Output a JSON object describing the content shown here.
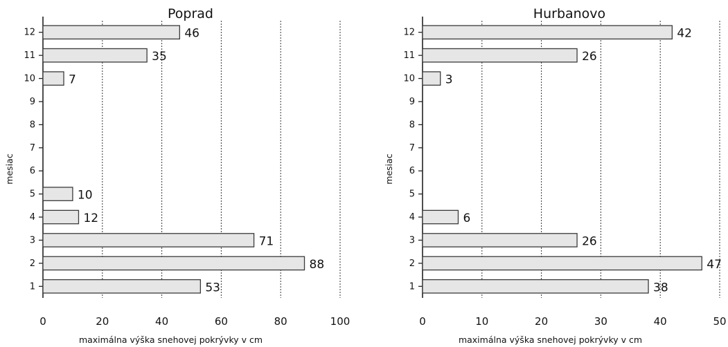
{
  "chart_data": [
    {
      "type": "bar",
      "orientation": "horizontal",
      "title": "Poprad",
      "categories": [
        "1",
        "2",
        "3",
        "4",
        "5",
        "6",
        "7",
        "8",
        "9",
        "10",
        "11",
        "12"
      ],
      "values": [
        53,
        88,
        71,
        12,
        10,
        null,
        null,
        null,
        null,
        7,
        35,
        46
      ],
      "value_labels": [
        "53",
        "88",
        "71",
        "12",
        "10",
        "",
        "",
        "",
        "",
        "7",
        "35",
        "46"
      ],
      "xlabel": "maximálna výška snehovej pokrývky v cm",
      "ylabel": "mesiac",
      "xlim": [
        0,
        100
      ],
      "xticks": [
        "0",
        "20",
        "40",
        "60",
        "80",
        "100"
      ],
      "grid": "vertical dotted"
    },
    {
      "type": "bar",
      "orientation": "horizontal",
      "title": "Hurbanovo",
      "categories": [
        "1",
        "2",
        "3",
        "4",
        "5",
        "6",
        "7",
        "8",
        "9",
        "10",
        "11",
        "12"
      ],
      "values": [
        38,
        47,
        26,
        6,
        null,
        null,
        null,
        null,
        null,
        3,
        26,
        42
      ],
      "value_labels": [
        "38",
        "47",
        "26",
        "6",
        "",
        "",
        "",
        "",
        "",
        "3",
        "26",
        "42"
      ],
      "xlabel": "maximálna výška snehovej pokrývky v cm",
      "ylabel": "mesiac",
      "xlim": [
        0,
        50
      ],
      "xticks": [
        "0",
        "10",
        "20",
        "30",
        "40",
        "50"
      ],
      "grid": "vertical dotted"
    }
  ],
  "colors": {
    "bar_fill": "#e6e6e6",
    "bar_stroke": "#3a3a3a",
    "axis": "#222222"
  }
}
